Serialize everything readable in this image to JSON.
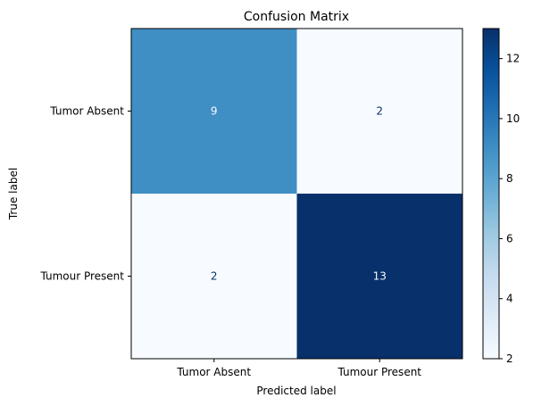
{
  "chart_data": {
    "type": "heatmap",
    "title": "Confusion Matrix",
    "xlabel": "Predicted label",
    "ylabel": "True label",
    "row_labels": [
      "Tumor Absent",
      "Tumour Present"
    ],
    "col_labels": [
      "Tumor Absent",
      "Tumour Present"
    ],
    "matrix": [
      [
        9,
        2
      ],
      [
        2,
        13
      ]
    ],
    "colormap": "Blues",
    "vmin": 2,
    "vmax": 13,
    "colorbar_ticks": [
      2,
      4,
      6,
      8,
      10,
      12
    ],
    "colors": {
      "low": "#f7fbff",
      "high": "#08306b",
      "text_on_dark": "#f7fbff",
      "text_on_light": "#08306b"
    }
  }
}
